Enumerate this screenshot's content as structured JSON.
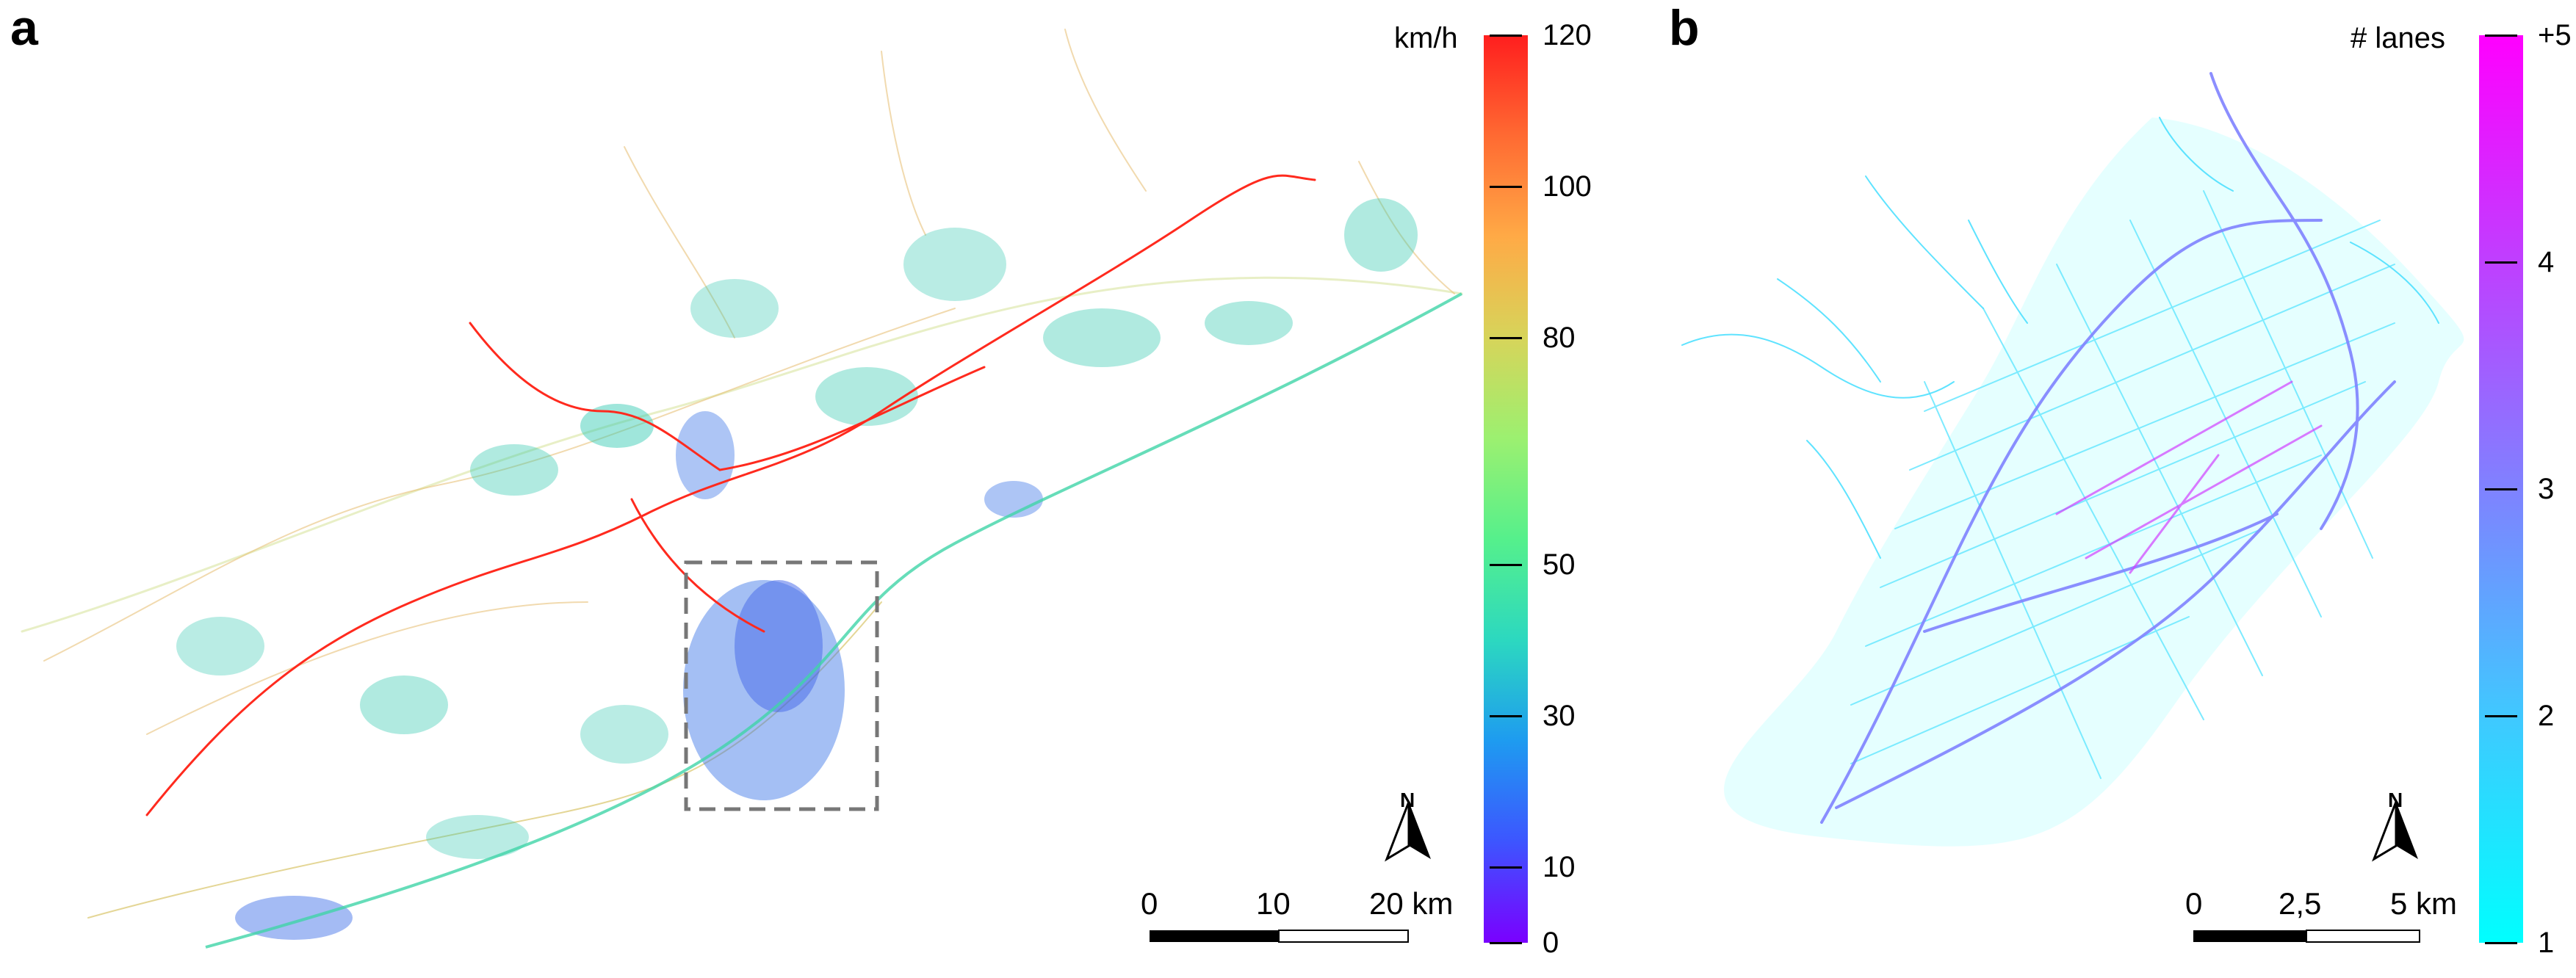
{
  "panel_a": {
    "letter": "a",
    "colorbar": {
      "unit": "km/h",
      "ticks": [
        {
          "value": 120,
          "label": "120"
        },
        {
          "value": 100,
          "label": "100"
        },
        {
          "value": 80,
          "label": "80"
        },
        {
          "value": 50,
          "label": "50"
        },
        {
          "value": 30,
          "label": "30"
        },
        {
          "value": 10,
          "label": "10"
        },
        {
          "value": 0,
          "label": "0"
        }
      ],
      "colors": [
        "#7a00ff",
        "#3d55ff",
        "#1e9bf0",
        "#2cd8c0",
        "#55f08c",
        "#9cf070",
        "#d7d45a",
        "#ffaa46",
        "#ff6a32",
        "#ff1e1e"
      ]
    },
    "scalebar": {
      "labels": [
        "0",
        "10",
        "20 km"
      ]
    },
    "north": "N"
  },
  "panel_b": {
    "letter": "b",
    "colorbar": {
      "unit": "# lanes",
      "ticks": [
        {
          "value": 5,
          "label": "+5"
        },
        {
          "value": 4,
          "label": "4"
        },
        {
          "value": 3,
          "label": "3"
        },
        {
          "value": 2,
          "label": "2"
        },
        {
          "value": 1,
          "label": "1"
        }
      ],
      "colors": [
        "#00ffff",
        "#40c8ff",
        "#7f82ff",
        "#bf3fff",
        "#ff00ff"
      ]
    },
    "scalebar": {
      "labels": [
        "0",
        "2,5",
        "5 km"
      ]
    },
    "north": "N"
  }
}
